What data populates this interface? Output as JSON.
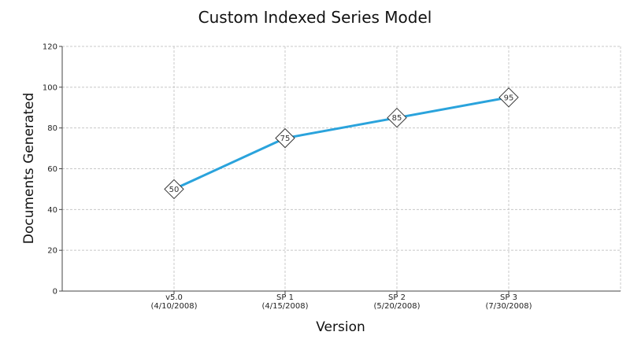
{
  "chart_data": {
    "type": "line",
    "title": "Custom Indexed Series Model",
    "xlabel": "Version",
    "ylabel": "Documents Generated",
    "categories": [
      [
        "v5.0",
        "(4/10/2008)"
      ],
      [
        "SP 1",
        "(4/15/2008)"
      ],
      [
        "SP 2",
        "(5/20/2008)"
      ],
      [
        "SP 3",
        "(7/30/2008)"
      ]
    ],
    "series": [
      {
        "values": [
          50,
          75,
          85,
          95
        ],
        "color": "#2aa3dc",
        "marker": "diamond"
      }
    ],
    "ylim": [
      0,
      120
    ],
    "yticks": [
      0,
      20,
      40,
      60,
      80,
      100,
      120
    ],
    "grid": true,
    "legend": "none"
  }
}
